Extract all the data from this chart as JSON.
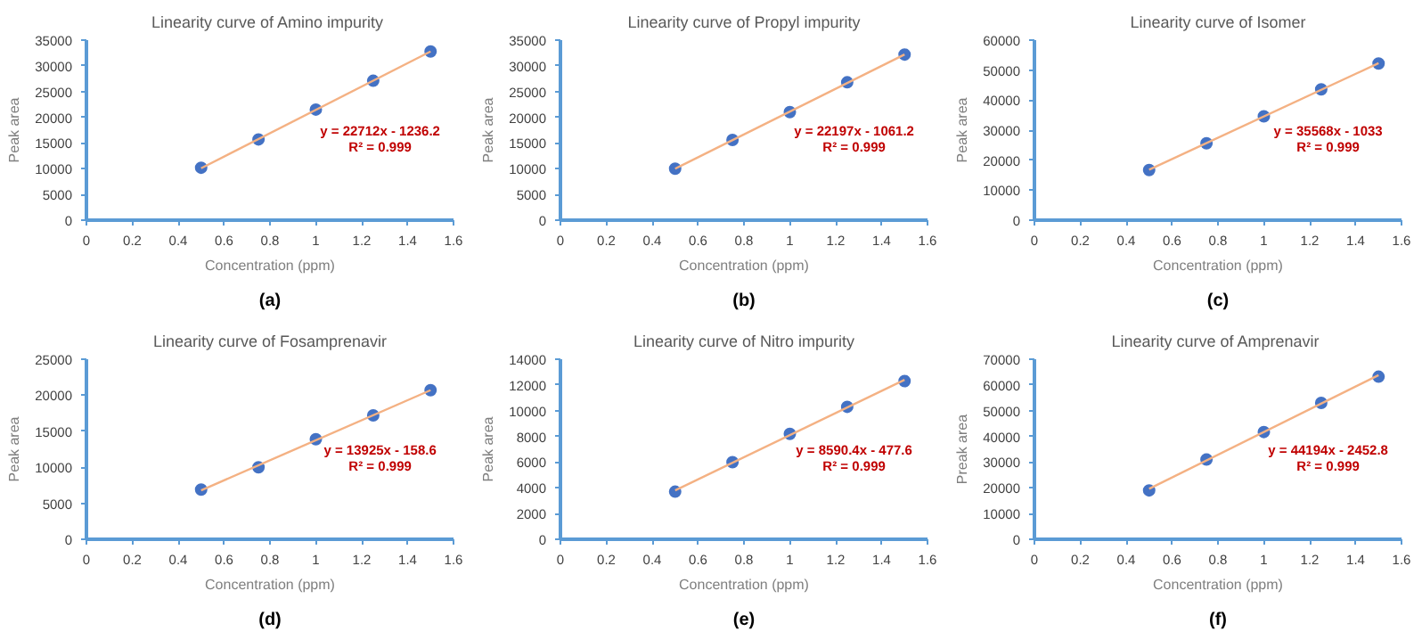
{
  "chart_data": [
    {
      "type": "scatter",
      "title": "Linearity curve of  Amino impurity",
      "xlabel": "Concentration (ppm)",
      "ylabel": "Peak area",
      "xlim": [
        0,
        1.6
      ],
      "ylim": [
        0,
        35000
      ],
      "xticks": [
        0,
        0.2,
        0.4,
        0.6,
        0.8,
        1,
        1.2,
        1.4,
        1.6
      ],
      "yticks": [
        0,
        5000,
        10000,
        15000,
        20000,
        25000,
        30000,
        35000
      ],
      "annotations": [
        "y = 22712x - 1236.2",
        "R² = 0.999",
        "(a)"
      ],
      "series": [
        {
          "color": "#4472c4",
          "marker": "circle",
          "x": [
            0.5,
            0.75,
            1,
            1.25,
            1.5
          ],
          "values": [
            10200,
            15700,
            21500,
            27100,
            32800
          ]
        },
        {
          "type": "line",
          "color": "#f4b183",
          "x": [
            0.5,
            1.5
          ],
          "values": [
            10100,
            32800
          ]
        }
      ]
    },
    {
      "type": "scatter",
      "title": "Linearity curve of Propyl impurity",
      "xlabel": "Concentration (ppm)",
      "ylabel": "Peak area",
      "xlim": [
        0,
        1.6
      ],
      "ylim": [
        0,
        35000
      ],
      "xticks": [
        0,
        0.2,
        0.4,
        0.6,
        0.8,
        1,
        1.2,
        1.4,
        1.6
      ],
      "yticks": [
        0,
        5000,
        10000,
        15000,
        20000,
        25000,
        30000,
        35000
      ],
      "annotations": [
        "y = 22197x - 1061.2",
        "R² = 0.999",
        "(b)"
      ],
      "series": [
        {
          "color": "#4472c4",
          "marker": "circle",
          "x": [
            0.5,
            0.75,
            1,
            1.25,
            1.5
          ],
          "values": [
            10000,
            15600,
            21000,
            26800,
            32200
          ]
        },
        {
          "type": "line",
          "color": "#f4b183",
          "x": [
            0.5,
            1.5
          ],
          "values": [
            10000,
            32200
          ]
        }
      ]
    },
    {
      "type": "scatter",
      "title": "Linearity curve of Isomer",
      "xlabel": "Concentration (ppm)",
      "ylabel": "Peak area",
      "xlim": [
        0,
        1.6
      ],
      "ylim": [
        0,
        60000
      ],
      "xticks": [
        0,
        0.2,
        0.4,
        0.6,
        0.8,
        1,
        1.2,
        1.4,
        1.6
      ],
      "yticks": [
        0,
        10000,
        20000,
        30000,
        40000,
        50000,
        60000
      ],
      "annotations": [
        "y = 35568x - 1033",
        "R² = 0.999",
        "(c)"
      ],
      "series": [
        {
          "color": "#4472c4",
          "marker": "circle",
          "x": [
            0.5,
            0.75,
            1,
            1.25,
            1.5
          ],
          "values": [
            16700,
            25600,
            34600,
            43600,
            52200
          ]
        },
        {
          "type": "line",
          "color": "#f4b183",
          "x": [
            0.5,
            1.5
          ],
          "values": [
            16800,
            52300
          ]
        }
      ]
    },
    {
      "type": "scatter",
      "title": "Linearity curve of Fosamprenavir",
      "xlabel": "Concentration (ppm)",
      "ylabel": "Peak area",
      "xlim": [
        0,
        1.6
      ],
      "ylim": [
        0,
        25000
      ],
      "xticks": [
        0,
        0.2,
        0.4,
        0.6,
        0.8,
        1,
        1.2,
        1.4,
        1.6
      ],
      "yticks": [
        0,
        5000,
        10000,
        15000,
        20000,
        25000
      ],
      "annotations": [
        "y = 13925x - 158.6",
        "R² = 0.999",
        "(d)"
      ],
      "series": [
        {
          "color": "#4472c4",
          "marker": "circle",
          "x": [
            0.5,
            0.75,
            1,
            1.25,
            1.5
          ],
          "values": [
            6900,
            10000,
            13900,
            17200,
            20700
          ]
        },
        {
          "type": "line",
          "color": "#f4b183",
          "x": [
            0.5,
            1.5
          ],
          "values": [
            6800,
            20700
          ]
        }
      ]
    },
    {
      "type": "scatter",
      "title": "Linearity curve of Nitro impurity",
      "xlabel": "Concentration (ppm)",
      "ylabel": "Peak area",
      "xlim": [
        0,
        1.6
      ],
      "ylim": [
        0,
        14000
      ],
      "xticks": [
        0,
        0.2,
        0.4,
        0.6,
        0.8,
        1,
        1.2,
        1.4,
        1.6
      ],
      "yticks": [
        0,
        2000,
        4000,
        6000,
        8000,
        10000,
        12000,
        14000
      ],
      "annotations": [
        "y = 8590.4x - 477.6",
        "R² = 0.999",
        "(e)"
      ],
      "series": [
        {
          "color": "#4472c4",
          "marker": "circle",
          "x": [
            0.5,
            0.75,
            1,
            1.25,
            1.5
          ],
          "values": [
            3700,
            6000,
            8200,
            10300,
            12300
          ]
        },
        {
          "type": "line",
          "color": "#f4b183",
          "x": [
            0.5,
            1.5
          ],
          "values": [
            3800,
            12400
          ]
        }
      ]
    },
    {
      "type": "scatter",
      "title": "Linearity curve  of Amprenavir",
      "xlabel": "Concentration (ppm)",
      "ylabel": "Preak area",
      "xlim": [
        0,
        1.6
      ],
      "ylim": [
        0,
        70000
      ],
      "xticks": [
        0,
        0.2,
        0.4,
        0.6,
        0.8,
        1,
        1.2,
        1.4,
        1.6
      ],
      "yticks": [
        0,
        10000,
        20000,
        30000,
        40000,
        50000,
        60000,
        70000
      ],
      "annotations": [
        "y = 44194x - 2452.8",
        "R² = 0.999",
        "(f)"
      ],
      "series": [
        {
          "color": "#4472c4",
          "marker": "circle",
          "x": [
            0.5,
            0.75,
            1,
            1.25,
            1.5
          ],
          "values": [
            19000,
            31000,
            41700,
            53000,
            63200
          ]
        },
        {
          "type": "line",
          "color": "#f4b183",
          "x": [
            0.5,
            1.5
          ],
          "values": [
            19600,
            63800
          ]
        }
      ]
    }
  ]
}
